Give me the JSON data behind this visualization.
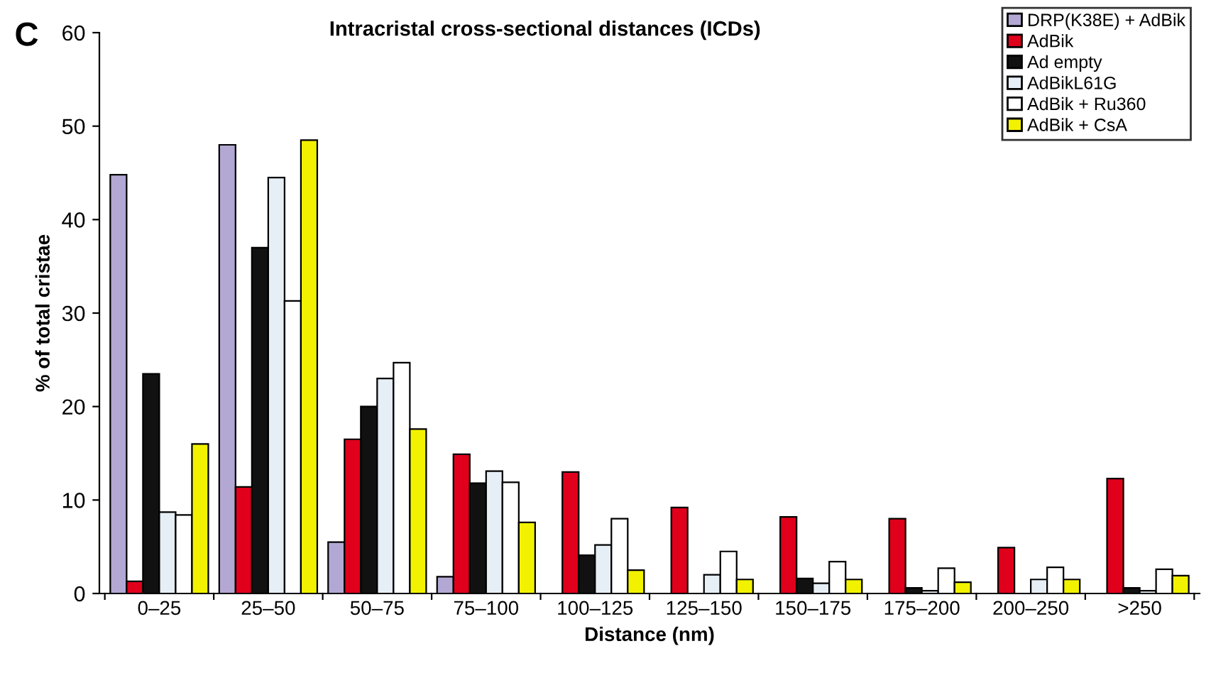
{
  "chart_data": {
    "type": "bar",
    "title": "Intracristal cross-sectional distances (ICDs)",
    "xlabel": "Distance (nm)",
    "ylabel": "% of total cristae",
    "annotations": [
      "C"
    ],
    "categories": [
      "0–25",
      "25–50",
      "50–75",
      "75–100",
      "100–125",
      "125–150",
      "150–175",
      "175–200",
      "200–250",
      ">250"
    ],
    "series": [
      {
        "name": "DRP(K38E) + AdBik",
        "color": "#b3a8d3",
        "values": [
          44.8,
          48,
          5.5,
          1.8,
          null,
          null,
          null,
          null,
          null,
          null
        ]
      },
      {
        "name": "AdBik",
        "color": "#e0001b",
        "values": [
          1.3,
          11.4,
          16.5,
          14.9,
          13,
          9.2,
          8.2,
          8.0,
          4.9,
          12.3
        ]
      },
      {
        "name": "Ad empty",
        "color": "#111111",
        "values": [
          23.5,
          37,
          20,
          11.8,
          4.1,
          null,
          1.6,
          0.6,
          null,
          0.6
        ]
      },
      {
        "name": "AdBikL61G",
        "color": "#e6eef6",
        "values": [
          8.7,
          44.5,
          23,
          13.1,
          5.2,
          2.0,
          1.1,
          0.3,
          1.5,
          0.3
        ]
      },
      {
        "name": "AdBik + Ru360",
        "color": "#ffffff",
        "values": [
          8.4,
          31.3,
          24.7,
          11.9,
          8,
          4.5,
          3.4,
          2.7,
          2.8,
          2.6
        ]
      },
      {
        "name": "AdBik + CsA",
        "color": "#f2f200",
        "values": [
          16,
          48.5,
          17.6,
          7.6,
          2.5,
          1.5,
          1.5,
          1.2,
          1.5,
          1.9
        ]
      }
    ],
    "ylim": [
      0,
      60
    ],
    "yticks": [
      0,
      10,
      20,
      30,
      40,
      50,
      60
    ],
    "grid": false,
    "legend": "top right"
  }
}
